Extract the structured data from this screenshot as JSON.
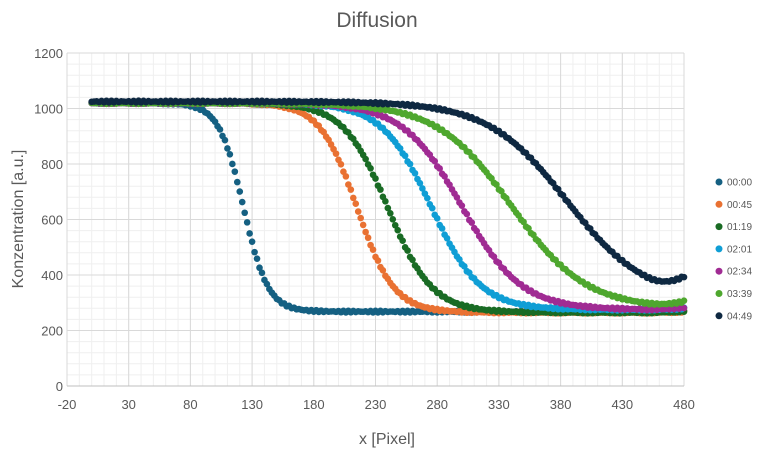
{
  "chart_data": {
    "type": "scatter",
    "title": "Diffusion",
    "xlabel": "x [Pixel]",
    "ylabel": "Konzentration [a.u.]",
    "xlim": [
      -20,
      480
    ],
    "ylim": [
      0,
      1200
    ],
    "x_ticks": [
      -20,
      30,
      80,
      130,
      180,
      230,
      280,
      330,
      380,
      430,
      480
    ],
    "y_ticks": [
      0,
      200,
      400,
      600,
      800,
      1000,
      1200
    ],
    "grid": true,
    "minor_grid": true,
    "legend_position": "right",
    "x_range_of_points": [
      0,
      480
    ],
    "series": [
      {
        "name": "00:00",
        "color": "#156082",
        "plateau": 1020,
        "baseline": 268,
        "midpoint": 123,
        "width": 10,
        "end_value": 275
      },
      {
        "name": "00:45",
        "color": "#E97132",
        "plateau": 1020,
        "baseline": 265,
        "midpoint": 215,
        "width": 15,
        "end_value": 268
      },
      {
        "name": "01:19",
        "color": "#196B24",
        "plateau": 1020,
        "baseline": 265,
        "midpoint": 240,
        "width": 18,
        "end_value": 270
      },
      {
        "name": "02:01",
        "color": "#0F9ED5",
        "plateau": 1020,
        "baseline": 275,
        "midpoint": 275,
        "width": 20,
        "end_value": 280
      },
      {
        "name": "02:34",
        "color": "#A02B93",
        "plateau": 1020,
        "baseline": 275,
        "midpoint": 300,
        "width": 24,
        "end_value": 283
      },
      {
        "name": "03:39",
        "color": "#4EA72E",
        "plateau": 1020,
        "baseline": 280,
        "midpoint": 340,
        "width": 30,
        "end_value": 298
      },
      {
        "name": "04:49",
        "color": "#0E2841",
        "plateau": 1025,
        "baseline": 310,
        "midpoint": 385,
        "width": 32,
        "end_value": 360
      }
    ]
  }
}
